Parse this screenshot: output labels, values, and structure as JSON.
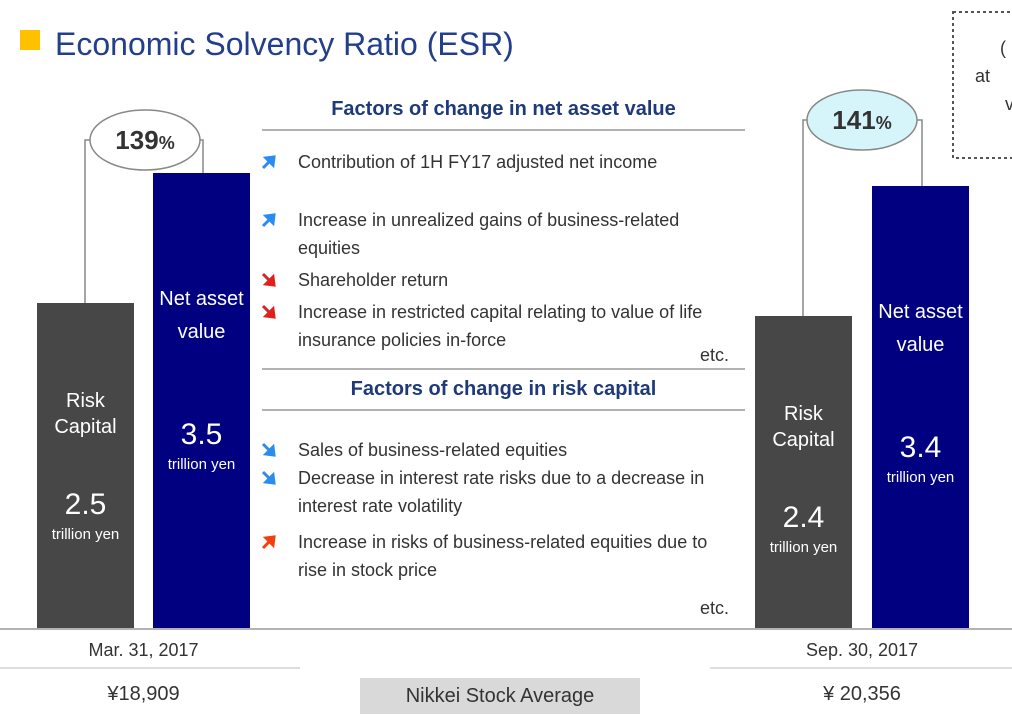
{
  "title": "Economic Solvency Ratio (ESR)",
  "chart_data": {
    "type": "bar",
    "categories": [
      "Mar. 31, 2017",
      "Sep. 30, 2017"
    ],
    "series": [
      {
        "name": "Risk Capital",
        "color": "#474747",
        "values": [
          2.5,
          2.4
        ]
      },
      {
        "name": "Net asset value",
        "color": "#000080",
        "values": [
          3.5,
          3.4
        ]
      }
    ],
    "unit": "trillion yen",
    "ratio": {
      "values": [
        139,
        141
      ],
      "unit": "%",
      "colors": [
        "#ffffff",
        "#d6f5fb"
      ]
    }
  },
  "nikkei": {
    "label": "Nikkei Stock Average",
    "values": [
      18909,
      20356
    ],
    "value_labels": [
      "¥18,909",
      "¥ 20,356"
    ]
  },
  "factors": [
    {
      "heading": "Factors of change in net asset value",
      "note": "etc.",
      "items": [
        {
          "direction": "up",
          "color": "#2a8cf0",
          "text": "Contribution of 1H FY17 adjusted net income"
        },
        {
          "direction": "up",
          "color": "#2a8cf0",
          "text": "Increase in unrealized gains of business-related equities"
        },
        {
          "direction": "down",
          "color": "#e02020",
          "text": "Shareholder return"
        },
        {
          "direction": "down",
          "color": "#e02020",
          "text": "Increase in restricted capital relating to value of life insurance policies in-force"
        }
      ]
    },
    {
      "heading": "Factors of change in risk capital",
      "note": "etc.",
      "items": [
        {
          "direction": "down",
          "color": "#2a8cf0",
          "text": "Sales of business-related equities"
        },
        {
          "direction": "down",
          "color": "#2a8cf0",
          "text": "Decrease in interest rate risks due to a decrease in interest rate volatility"
        },
        {
          "direction": "up",
          "color": "#f04010",
          "text": "Increase in risks of business-related equities due to rise in stock price"
        }
      ]
    }
  ],
  "note_box": [
    "(",
    "at",
    "v"
  ]
}
